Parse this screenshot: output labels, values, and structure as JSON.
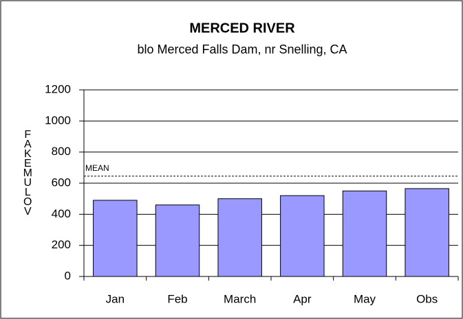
{
  "chart_data": {
    "type": "bar",
    "title": "MERCED RIVER",
    "subtitle": "blo Merced Falls Dam, nr Snelling, CA",
    "y_label": "FAKEMULOV",
    "categories": [
      "Jan",
      "Feb",
      "March",
      "Apr",
      "May",
      "Obs"
    ],
    "values": [
      490,
      460,
      500,
      520,
      550,
      565
    ],
    "color": "#9999ff",
    "ylim": [
      0,
      1200
    ],
    "yticks": [
      0,
      200,
      400,
      600,
      800,
      1000,
      1200
    ],
    "grid": true,
    "annotation": {
      "text": "MEAN",
      "value": 645
    }
  }
}
